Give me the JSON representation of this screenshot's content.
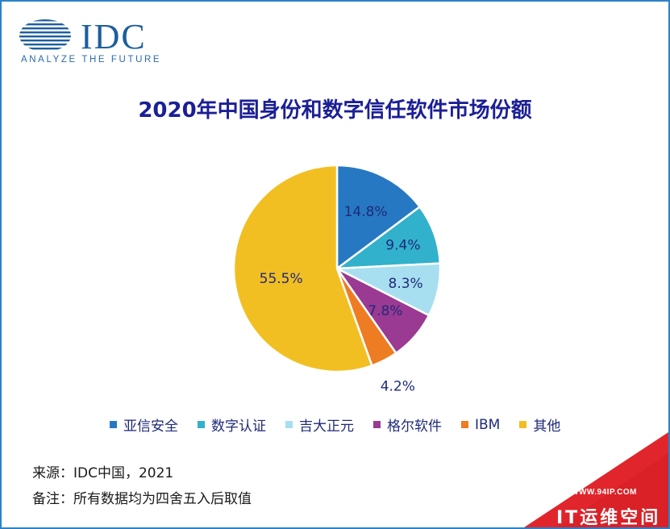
{
  "logo": {
    "word": "IDC",
    "tagline": "ANALYZE THE FUTURE",
    "color": "#1d5e9e"
  },
  "title": "2020年中国身份和数字信任软件市场份额",
  "chart_data": {
    "type": "pie",
    "title": "2020年中国身份和数字信任软件市场份额",
    "slices": [
      {
        "label": "亚信安全",
        "value": 14.8,
        "display": "14.8%",
        "color": "#2778c2"
      },
      {
        "label": "数字认证",
        "value": 9.4,
        "display": "9.4%",
        "color": "#32b1cc"
      },
      {
        "label": "吉大正元",
        "value": 8.3,
        "display": "8.3%",
        "color": "#a7dff0"
      },
      {
        "label": "格尔软件",
        "value": 7.8,
        "display": "7.8%",
        "color": "#9a3a92"
      },
      {
        "label": "IBM",
        "value": 4.2,
        "display": "4.2%",
        "color": "#ee7c22"
      },
      {
        "label": "其他",
        "value": 55.5,
        "display": "55.5%",
        "color": "#f2bf23"
      }
    ],
    "start_angle_deg": 0,
    "direction": "clockwise",
    "legend_position": "bottom"
  },
  "notes": {
    "source": "来源：IDC中国，2021",
    "remark": "备注：所有数据均为四舍五入后取值"
  },
  "watermark": {
    "url": "WWW.94IP.COM",
    "brand": "IT运维空间",
    "color": "#e0262c"
  }
}
